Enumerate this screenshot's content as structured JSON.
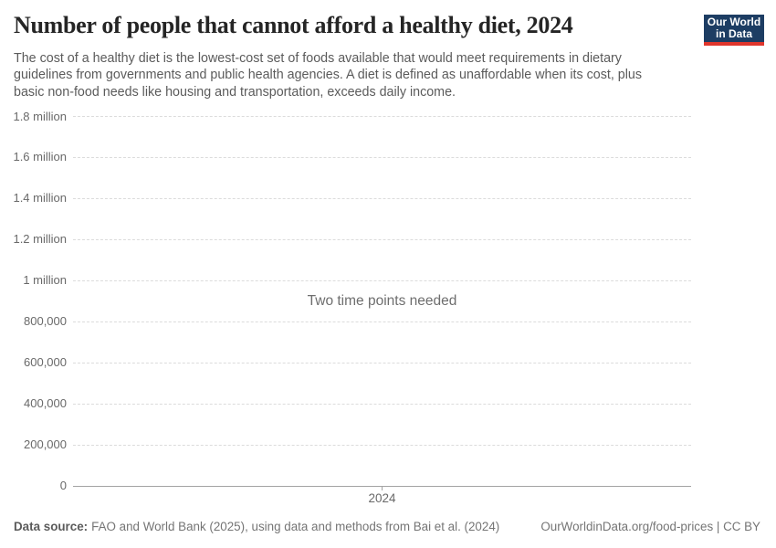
{
  "header": {
    "title": "Number of people that cannot afford a healthy diet, 2024",
    "subtitle_lines": [
      "The cost of a healthy diet is the lowest-cost set of foods available that would meet requirements in dietary",
      "guidelines from governments and public health agencies. A diet is defined as unaffordable when its cost, plus",
      "basic non-food needs like housing and transportation, exceeds daily income."
    ],
    "logo": {
      "line1": "Our World",
      "line2": "in Data"
    }
  },
  "chart_data": {
    "type": "line",
    "title": "Number of people that cannot afford a healthy diet, 2024",
    "series": [],
    "empty_message": "Two time points needed",
    "y_axis": {
      "ylim": [
        0,
        1800000
      ],
      "ticks": [
        {
          "value": 1800000,
          "label": "1.8 million"
        },
        {
          "value": 1600000,
          "label": "1.6 million"
        },
        {
          "value": 1400000,
          "label": "1.4 million"
        },
        {
          "value": 1200000,
          "label": "1.2 million"
        },
        {
          "value": 1000000,
          "label": "1 million"
        },
        {
          "value": 800000,
          "label": "800,000"
        },
        {
          "value": 600000,
          "label": "600,000"
        },
        {
          "value": 400000,
          "label": "400,000"
        },
        {
          "value": 200000,
          "label": "200,000"
        },
        {
          "value": 0,
          "label": "0"
        }
      ]
    },
    "x_axis": {
      "ticks": [
        {
          "value": 2024,
          "label": "2024"
        }
      ]
    },
    "grid": "horizontal-dashed",
    "legend": "none"
  },
  "colors": {
    "title": "#252525",
    "subtitle": "#5b5b5b",
    "tick_label": "#696969",
    "gridline": "#dcdcdc",
    "axis_line": "#a3a3a3",
    "empty_message": "#6e6e6e",
    "footer_text": "#757575",
    "logo_background": "#1d3d63",
    "logo_stripe": "#e0362c"
  },
  "footer": {
    "source_label": "Data source:",
    "source_text": "FAO and World Bank (2025), using data and methods from Bai et al. (2024)",
    "attribution": "OurWorldinData.org/food-prices | CC BY"
  }
}
